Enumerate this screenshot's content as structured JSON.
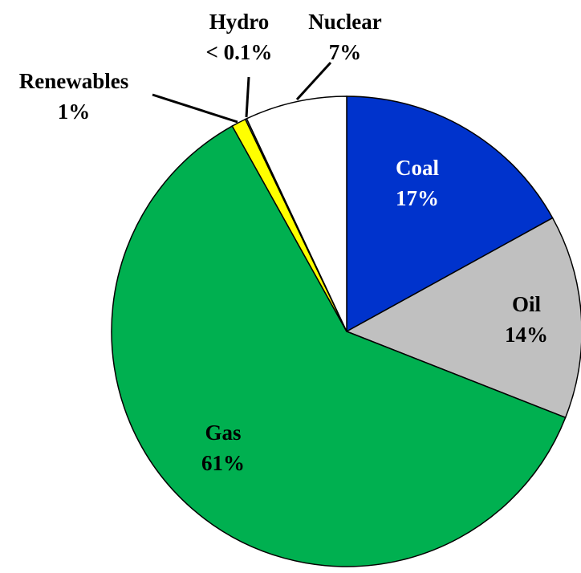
{
  "chart_data": {
    "type": "pie",
    "categories": [
      "Coal",
      "Oil",
      "Gas",
      "Renewables",
      "Hydro",
      "Nuclear"
    ],
    "values": [
      17,
      14,
      61,
      1,
      0.1,
      7
    ],
    "value_labels": [
      "17%",
      "14%",
      "61%",
      "1%",
      "< 0.1%",
      "7%"
    ],
    "colors": [
      "#0033cc",
      "#c0c0c0",
      "#00b050",
      "#ffff00",
      "#9fd7ff",
      "#ffffff"
    ]
  }
}
